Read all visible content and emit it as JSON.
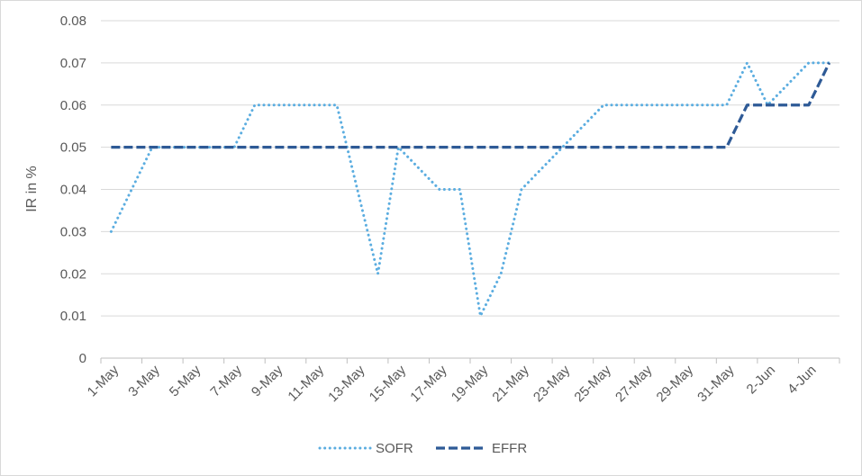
{
  "chart_data": {
    "type": "line",
    "title": "",
    "xlabel": "",
    "ylabel": "IR in %",
    "ylim": [
      0,
      0.08
    ],
    "yticks": [
      0,
      0.01,
      0.02,
      0.03,
      0.04,
      0.05,
      0.06,
      0.07,
      0.08
    ],
    "ytick_labels": [
      "0",
      "0.01",
      "0.02",
      "0.03",
      "0.04",
      "0.05",
      "0.06",
      "0.07",
      "0.08"
    ],
    "grid": true,
    "legend": "bottom",
    "x": [
      "1-May",
      "2-May",
      "3-May",
      "4-May",
      "5-May",
      "6-May",
      "7-May",
      "8-May",
      "9-May",
      "10-May",
      "11-May",
      "12-May",
      "13-May",
      "14-May",
      "15-May",
      "16-May",
      "17-May",
      "18-May",
      "19-May",
      "20-May",
      "21-May",
      "22-May",
      "23-May",
      "24-May",
      "25-May",
      "26-May",
      "27-May",
      "28-May",
      "29-May",
      "30-May",
      "31-May",
      "1-Jun",
      "2-Jun",
      "3-Jun",
      "4-Jun",
      "5-Jun"
    ],
    "xtick_labels": [
      "1-May",
      "3-May",
      "5-May",
      "7-May",
      "9-May",
      "11-May",
      "13-May",
      "15-May",
      "17-May",
      "19-May",
      "21-May",
      "23-May",
      "25-May",
      "27-May",
      "29-May",
      "31-May",
      "2-Jun",
      "4-Jun"
    ],
    "series": [
      {
        "name": "SOFR",
        "color": "#5BADE0",
        "values": [
          0.03,
          0.04,
          0.05,
          0.05,
          0.05,
          0.05,
          0.05,
          0.06,
          0.06,
          0.06,
          0.06,
          0.06,
          0.04,
          0.02,
          0.05,
          0.045,
          0.04,
          0.04,
          0.01,
          0.02,
          0.04,
          0.045,
          0.05,
          0.055,
          0.06,
          0.06,
          0.06,
          0.06,
          0.06,
          0.06,
          0.06,
          0.07,
          0.06,
          0.065,
          0.07,
          0.07
        ]
      },
      {
        "name": "EFFR",
        "color": "#2E5A96",
        "values": [
          0.05,
          0.05,
          0.05,
          0.05,
          0.05,
          0.05,
          0.05,
          0.05,
          0.05,
          0.05,
          0.05,
          0.05,
          0.05,
          0.05,
          0.05,
          0.05,
          0.05,
          0.05,
          0.05,
          0.05,
          0.05,
          0.05,
          0.05,
          0.05,
          0.05,
          0.05,
          0.05,
          0.05,
          0.05,
          0.05,
          0.05,
          0.06,
          0.06,
          0.06,
          0.06,
          0.07
        ]
      }
    ]
  }
}
